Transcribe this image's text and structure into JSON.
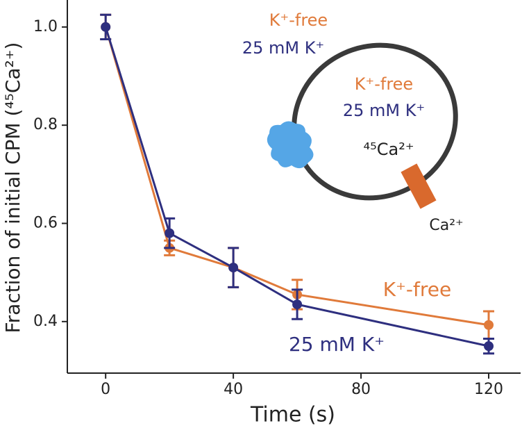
{
  "chart_data": {
    "type": "line",
    "x_label": "Time (s)",
    "y_label": "Fraction of initial CPM (⁴⁵Ca²⁺)",
    "x": [
      0,
      20,
      40,
      60,
      120
    ],
    "series": [
      {
        "name": "K⁺-free",
        "color": "#e07a3a",
        "values": [
          1.0,
          0.55,
          0.51,
          0.455,
          0.393
        ],
        "errors": [
          0.025,
          0.015,
          0.04,
          0.03,
          0.028
        ]
      },
      {
        "name": "25 mM K⁺",
        "color": "#2e2f7f",
        "values": [
          1.0,
          0.58,
          0.51,
          0.435,
          0.35
        ],
        "errors": [
          0.025,
          0.03,
          0.04,
          0.03,
          0.015
        ]
      }
    ],
    "xlim": [
      -12,
      130
    ],
    "xticks": [
      0,
      40,
      80,
      120
    ],
    "ylim": [
      0.295,
      1.055
    ],
    "yticks": [
      {
        "value": 0.4,
        "label": "0.4"
      },
      {
        "value": 0.6,
        "label": "0.6"
      },
      {
        "value": 0.8,
        "label": "0.8"
      },
      {
        "value": 1.0,
        "label": "1.0"
      }
    ],
    "annotations": [
      {
        "text": "K⁺-free",
        "color": "#e07a3a"
      },
      {
        "text": "25 mM K⁺",
        "color": "#2e2f7f"
      },
      {
        "text": "K⁺-free",
        "color": "#e07a3a"
      },
      {
        "text": "25 mM K⁺",
        "color": "#2e2f7f"
      },
      {
        "text": "⁴⁵Ca²⁺",
        "color": "#222222"
      },
      {
        "text": "Ca²⁺",
        "color": "#222222"
      }
    ]
  }
}
